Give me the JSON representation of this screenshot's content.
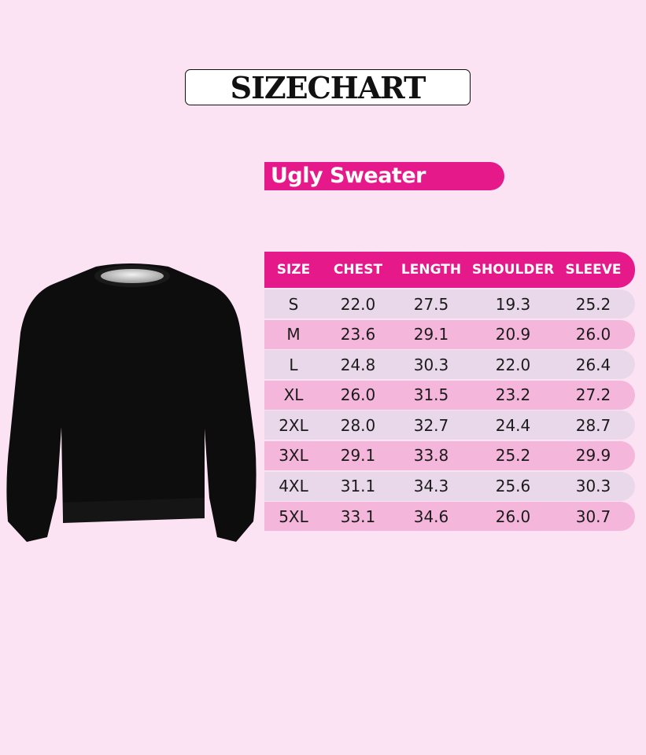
{
  "title": "SIZECHART",
  "product_label": "Ugly Sweater",
  "colors": {
    "background": "#fbe3f3",
    "accent": "#e5198a",
    "row_light": "#e9d7ea",
    "row_pink": "#f4b6da"
  },
  "image": {
    "name": "black-sweater"
  },
  "table": {
    "headers": [
      "SIZE",
      "CHEST",
      "LENGTH",
      "SHOULDER",
      "SLEEVE"
    ],
    "rows": [
      [
        "S",
        "22.0",
        "27.5",
        "19.3",
        "25.2"
      ],
      [
        "M",
        "23.6",
        "29.1",
        "20.9",
        "26.0"
      ],
      [
        "L",
        "24.8",
        "30.3",
        "22.0",
        "26.4"
      ],
      [
        "XL",
        "26.0",
        "31.5",
        "23.2",
        "27.2"
      ],
      [
        "2XL",
        "28.0",
        "32.7",
        "24.4",
        "28.7"
      ],
      [
        "3XL",
        "29.1",
        "33.8",
        "25.2",
        "29.9"
      ],
      [
        "4XL",
        "31.1",
        "34.3",
        "25.6",
        "30.3"
      ],
      [
        "5XL",
        "33.1",
        "34.6",
        "26.0",
        "30.7"
      ]
    ]
  }
}
